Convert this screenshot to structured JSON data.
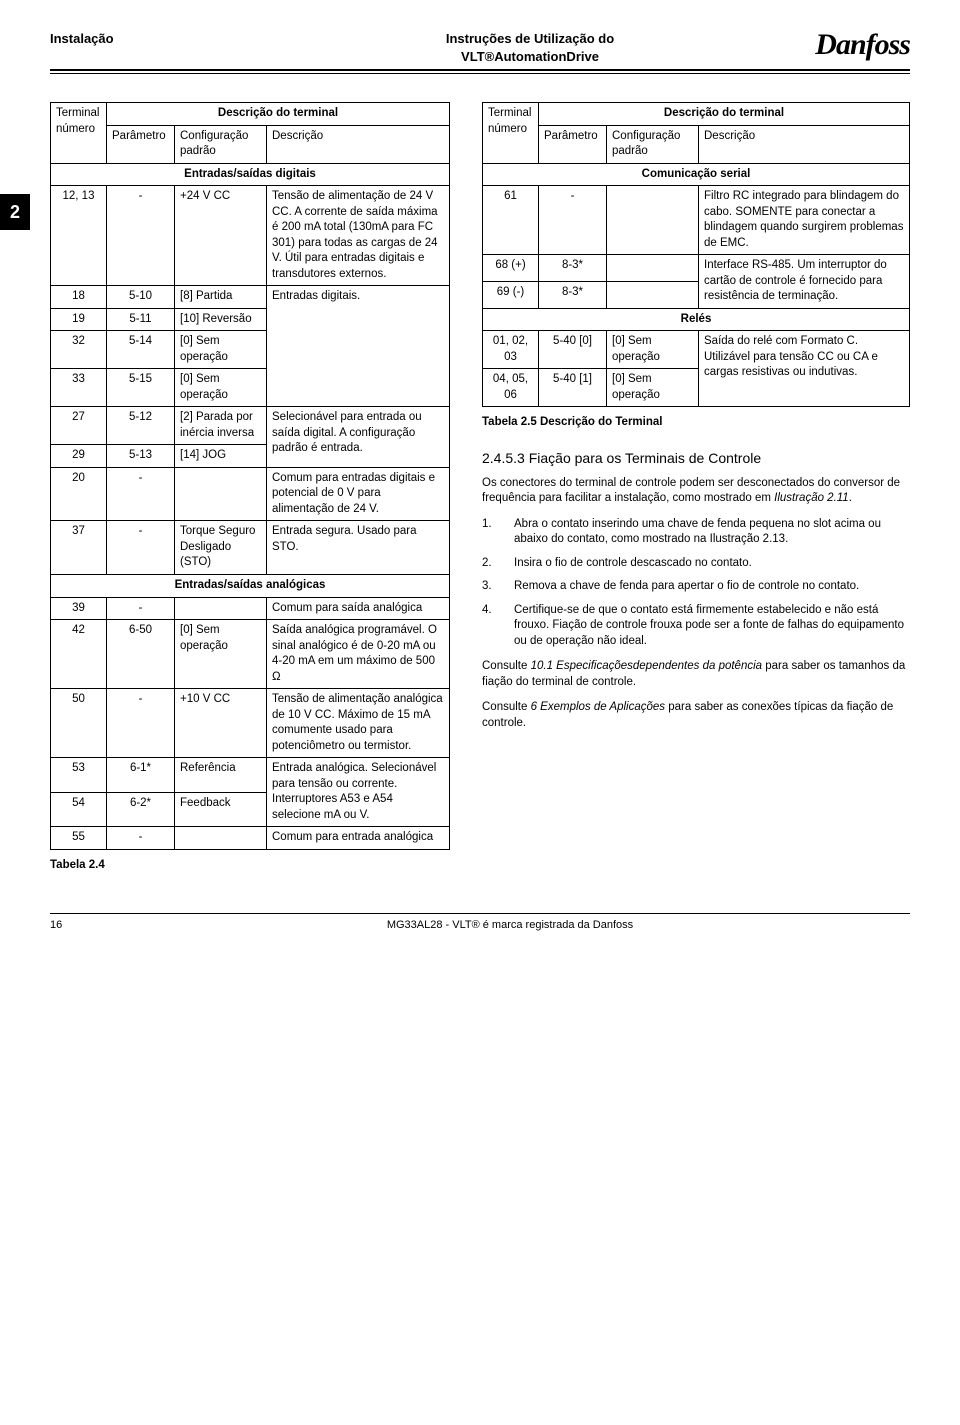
{
  "header": {
    "left": "Instalação",
    "center1": "Instruções de Utilização do",
    "center2": "VLT®AutomationDrive",
    "logo_text": "Danfoss"
  },
  "chapter_tab": "2",
  "table_left": {
    "title": "Descrição do terminal",
    "head": {
      "c1a": "Terminal",
      "c1b": "número",
      "c2": "Parâmetro",
      "c3a": "Configuração",
      "c3b": "padrão",
      "c4": "Descrição"
    },
    "section1": "Entradas/saídas digitais",
    "rows1": [
      {
        "t": "12, 13",
        "p": "-",
        "c": "+24 V CC",
        "d": "Tensão de alimentação de 24 V CC. A corrente de saída máxima é 200 mA total (130mA para FC 301) para todas as cargas de 24 V. Útil para entradas digitais e transdutores externos."
      }
    ],
    "rows_group_digital": {
      "desc": "Entradas digitais.",
      "items": [
        {
          "t": "18",
          "p": "5-10",
          "c": "[8] Partida"
        },
        {
          "t": "19",
          "p": "5-11",
          "c": "[10] Reversão"
        },
        {
          "t": "32",
          "p": "5-14",
          "c": "[0] Sem operação"
        },
        {
          "t": "33",
          "p": "5-15",
          "c": "[0] Sem operação"
        }
      ]
    },
    "rows_group_select": {
      "desc": "Selecionável para entrada ou saída digital. A configuração padrão é entrada.",
      "items": [
        {
          "t": "27",
          "p": "5-12",
          "c": "[2] Parada por inércia inversa"
        },
        {
          "t": "29",
          "p": "5-13",
          "c": "[14] JOG"
        }
      ]
    },
    "row20": {
      "t": "20",
      "p": "-",
      "c": "",
      "d": "Comum para entradas digitais e potencial de 0 V para alimentação de 24 V."
    },
    "row37": {
      "t": "37",
      "p": "-",
      "c": "Torque Seguro Desligado (STO)",
      "d": "Entrada segura. Usado para STO."
    },
    "section2": "Entradas/saídas analógicas",
    "rows2": [
      {
        "t": "39",
        "p": "-",
        "c": "",
        "d": "Comum para saída analógica"
      },
      {
        "t": "42",
        "p": "6-50",
        "c": "[0] Sem operação",
        "d": "Saída analógica programável. O sinal analógico é de 0-20 mA ou 4-20 mA em um máximo de 500 Ω"
      },
      {
        "t": "50",
        "p": "-",
        "c": "+10 V CC",
        "d": "Tensão de alimentação analógica de 10 V CC. Máximo de 15 mA comumente usado para potenciômetro ou termistor."
      }
    ],
    "rows_group_analog_in": {
      "desc": "Entrada analógica. Selecionável para tensão ou corrente. Interruptores A53 e A54 selecione mA ou V.",
      "items": [
        {
          "t": "53",
          "p": "6-1*",
          "c": "Referência"
        },
        {
          "t": "54",
          "p": "6-2*",
          "c": "Feedback"
        }
      ]
    },
    "row55": {
      "t": "55",
      "p": "-",
      "c": "",
      "d": "Comum para entrada analógica"
    },
    "caption": "Tabela 2.4"
  },
  "table_right": {
    "title": "Descrição do terminal",
    "head": {
      "c1a": "Terminal",
      "c1b": "número",
      "c2": "Parâmetro",
      "c3a": "Configuração",
      "c3b": "padrão",
      "c4": "Descrição"
    },
    "section1": "Comunicação serial",
    "row61": {
      "t": "61",
      "p": "-",
      "c": "",
      "d": "Filtro RC integrado para blindagem do cabo. SOMENTE para conectar a blindagem quando surgirem problemas de EMC."
    },
    "rows_group_serial": {
      "desc": "Interface RS-485. Um interruptor do cartão de controle é fornecido para resistência de terminação.",
      "items": [
        {
          "t": "68 (+)",
          "p": "8-3*",
          "c": ""
        },
        {
          "t": "69 (-)",
          "p": "8-3*",
          "c": ""
        }
      ]
    },
    "section2": "Relés",
    "rows_group_relay": {
      "desc": "Saída do relé com Formato C. Utilizável para tensão CC ou CA e cargas resistivas ou indutivas.",
      "items": [
        {
          "t": "01, 02, 03",
          "p": "5-40 [0]",
          "c": "[0] Sem operação"
        },
        {
          "t": "04, 05, 06",
          "p": "5-40 [1]",
          "c": "[0] Sem operação"
        }
      ]
    },
    "caption": "Tabela 2.5 Descrição do Terminal"
  },
  "section": {
    "num": "2.4.5.3",
    "title": "Fiação para os Terminais de Controle",
    "p1a": "Os conectores do terminal de controle podem ser desconectados do conversor de frequência para facilitar a instalação, como mostrado em ",
    "p1b": "Ilustração 2.11",
    "p1c": ".",
    "steps": [
      {
        "n": "1.",
        "t_a": "Abra o contato inserindo uma chave de fenda pequena no slot acima ou abaixo do contato, como mostrado na ",
        "t_b": "Ilustração 2.13",
        "t_c": "."
      },
      {
        "n": "2.",
        "t_a": "Insira o fio de controle descascado no contato.",
        "t_b": "",
        "t_c": ""
      },
      {
        "n": "3.",
        "t_a": "Remova a chave de fenda para apertar o fio de controle no contato.",
        "t_b": "",
        "t_c": ""
      },
      {
        "n": "4.",
        "t_a": "Certifique-se de que o contato está firmemente estabelecido e não está frouxo. Fiação de controle frouxa pode ser a fonte de falhas do equipamento ou de operação não ideal.",
        "t_b": "",
        "t_c": ""
      }
    ],
    "p2a": "Consulte ",
    "p2b": "10.1 Especificaçõesdependentes da potência",
    "p2c": " para saber os tamanhos da fiação do terminal de controle.",
    "p3a": "Consulte ",
    "p3b": "6 Exemplos de Aplicações",
    "p3c": " para saber as conexões típicas da fiação de controle."
  },
  "footer": {
    "page": "16",
    "mid": "MG33AL28 - VLT® é marca registrada da Danfoss"
  }
}
